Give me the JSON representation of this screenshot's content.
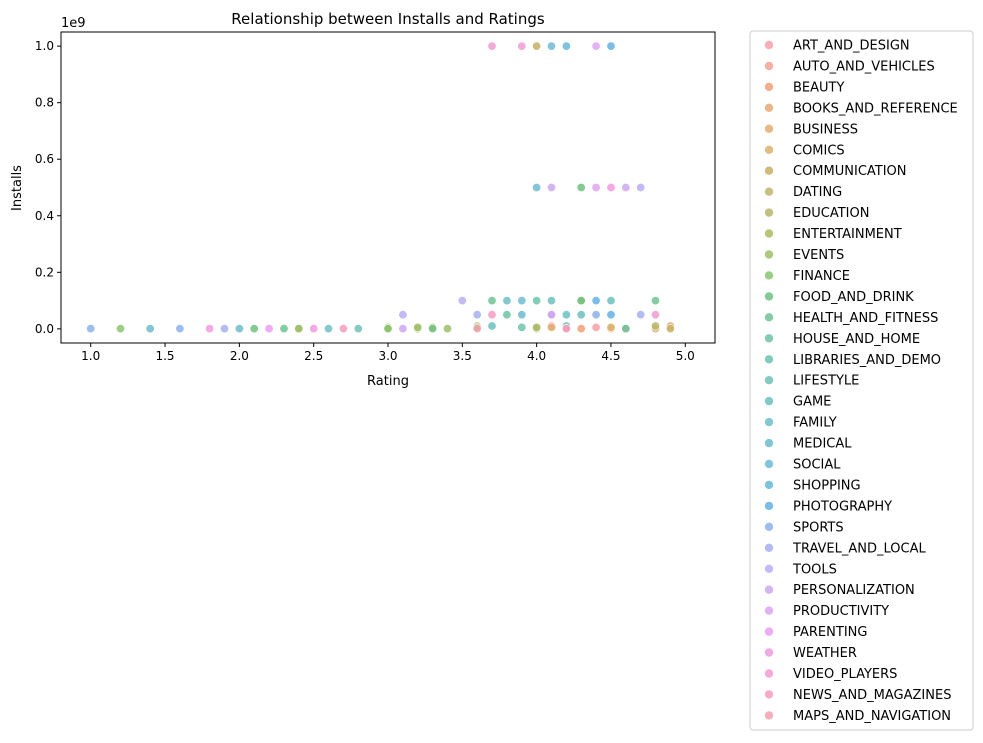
{
  "chart_data": {
    "type": "scatter",
    "title": "Relationship between Installs and Ratings",
    "xlabel": "Rating",
    "ylabel": "Installs",
    "y_offset_text": "1e9",
    "xlim": [
      0.8,
      5.2
    ],
    "ylim": [
      -0.05,
      1.05
    ],
    "x_ticks": [
      1.0,
      1.5,
      2.0,
      2.5,
      3.0,
      3.5,
      4.0,
      4.5,
      5.0
    ],
    "x_tick_labels": [
      "1.0",
      "1.5",
      "2.0",
      "2.5",
      "3.0",
      "3.5",
      "4.0",
      "4.5",
      "5.0"
    ],
    "y_ticks": [
      0.0,
      0.2,
      0.4,
      0.6,
      0.8,
      1.0
    ],
    "y_tick_labels": [
      "0.0",
      "0.2",
      "0.4",
      "0.6",
      "0.8",
      "1.0"
    ],
    "grid": false,
    "legend_position": "outside-right",
    "series": [
      {
        "name": "ART_AND_DESIGN",
        "color": "#f7a0a8",
        "points": [
          [
            4.1,
            0.01
          ],
          [
            4.4,
            0.005
          ]
        ]
      },
      {
        "name": "AUTO_AND_VEHICLES",
        "color": "#f4a194",
        "points": [
          [
            4.6,
            0.001
          ]
        ]
      },
      {
        "name": "BEAUTY",
        "color": "#f2a079",
        "points": [
          [
            4.3,
            0.001
          ]
        ]
      },
      {
        "name": "BOOKS_AND_REFERENCE",
        "color": "#e9a873",
        "points": [
          [
            4.5,
            0.001
          ],
          [
            4.6,
            0.001
          ]
        ]
      },
      {
        "name": "BUSINESS",
        "color": "#e3ad72",
        "points": [
          [
            4.1,
            0.005
          ],
          [
            4.8,
            0.001
          ],
          [
            4.9,
            0.01
          ]
        ]
      },
      {
        "name": "COMICS",
        "color": "#d9b36f",
        "points": [
          [
            4.5,
            0.005
          ]
        ]
      },
      {
        "name": "COMMUNICATION",
        "color": "#c7b065",
        "points": [
          [
            4.0,
            1.0
          ],
          [
            4.3,
            0.1
          ],
          [
            4.9,
            0.001
          ]
        ]
      },
      {
        "name": "DATING",
        "color": "#bdb56c",
        "points": [
          [
            3.3,
            0.005
          ],
          [
            3.6,
            0.01
          ],
          [
            4.0,
            0.001
          ]
        ]
      },
      {
        "name": "EDUCATION",
        "color": "#b6b769",
        "points": [
          [
            3.0,
            0.005
          ],
          [
            3.2,
            0.001
          ],
          [
            4.8,
            0.01
          ]
        ]
      },
      {
        "name": "ENTERTAINMENT",
        "color": "#adbb64",
        "points": [
          [
            2.4,
            0.001
          ],
          [
            3.0,
            0.001
          ],
          [
            4.0,
            0.005
          ]
        ]
      },
      {
        "name": "EVENTS",
        "color": "#9ebf6a",
        "points": [
          [
            2.4,
            0.001
          ],
          [
            3.2,
            0.005
          ],
          [
            3.4,
            0.001
          ]
        ]
      },
      {
        "name": "FINANCE",
        "color": "#87c56e",
        "points": [
          [
            1.2,
            0.001
          ],
          [
            3.0,
            0.001
          ],
          [
            3.6,
            0.005
          ]
        ]
      },
      {
        "name": "FOOD_AND_DRINK",
        "color": "#6fc280",
        "points": [
          [
            4.3,
            0.5
          ],
          [
            4.3,
            0.1
          ],
          [
            2.1,
            0.001
          ],
          [
            3.3,
            0.001
          ]
        ]
      },
      {
        "name": "HEALTH_AND_FITNESS",
        "color": "#70c293",
        "points": [
          [
            3.7,
            0.1
          ],
          [
            4.8,
            0.1
          ],
          [
            2.3,
            0.001
          ]
        ]
      },
      {
        "name": "HOUSE_AND_HOME",
        "color": "#6cc3a1",
        "points": [
          [
            3.8,
            0.05
          ],
          [
            4.6,
            0.001
          ]
        ]
      },
      {
        "name": "LIBRARIES_AND_DEMO",
        "color": "#6ec3ae",
        "points": [
          [
            4.0,
            0.1
          ],
          [
            3.9,
            0.005
          ]
        ]
      },
      {
        "name": "LIFESTYLE",
        "color": "#70c2b6",
        "points": [
          [
            2.8,
            0.001
          ],
          [
            4.2,
            0.01
          ]
        ]
      },
      {
        "name": "GAME",
        "color": "#6cc1bf",
        "points": [
          [
            3.7,
            0.01
          ],
          [
            4.1,
            0.1
          ],
          [
            4.3,
            0.05
          ],
          [
            4.5,
            0.1
          ]
        ]
      },
      {
        "name": "FAMILY",
        "color": "#6ebfc6",
        "points": [
          [
            3.8,
            0.1
          ],
          [
            4.2,
            0.05
          ],
          [
            2.6,
            0.001
          ]
        ]
      },
      {
        "name": "MEDICAL",
        "color": "#6bbcca",
        "points": [
          [
            3.9,
            0.05
          ],
          [
            1.4,
            0.001
          ],
          [
            2.0,
            0.001
          ]
        ]
      },
      {
        "name": "SOCIAL",
        "color": "#6ebbd4",
        "points": [
          [
            4.1,
            1.0
          ],
          [
            4.0,
            0.5
          ],
          [
            3.9,
            0.1
          ]
        ]
      },
      {
        "name": "SHOPPING",
        "color": "#67b8d8",
        "points": [
          [
            4.2,
            1.0
          ],
          [
            4.1,
            0.05
          ]
        ]
      },
      {
        "name": "PHOTOGRAPHY",
        "color": "#64b1e3",
        "points": [
          [
            4.5,
            1.0
          ],
          [
            4.4,
            0.1
          ],
          [
            4.5,
            0.05
          ]
        ]
      },
      {
        "name": "SPORTS",
        "color": "#8cb2ea",
        "points": [
          [
            4.4,
            0.05
          ],
          [
            1.6,
            0.001
          ],
          [
            1.0,
            0.001
          ]
        ]
      },
      {
        "name": "TRAVEL_AND_LOCAL",
        "color": "#a5b0ef",
        "points": [
          [
            4.7,
            0.05
          ],
          [
            3.6,
            0.05
          ],
          [
            1.9,
            0.001
          ]
        ]
      },
      {
        "name": "TOOLS",
        "color": "#b8aef4",
        "points": [
          [
            4.7,
            0.5
          ],
          [
            3.5,
            0.1
          ],
          [
            3.1,
            0.05
          ]
        ]
      },
      {
        "name": "PERSONALIZATION",
        "color": "#cda8f0",
        "points": [
          [
            4.1,
            0.5
          ],
          [
            4.6,
            0.5
          ],
          [
            3.1,
            0.001
          ]
        ]
      },
      {
        "name": "PRODUCTIVITY",
        "color": "#dea4f4",
        "points": [
          [
            4.4,
            1.0
          ],
          [
            4.4,
            0.5
          ],
          [
            4.1,
            0.05
          ]
        ]
      },
      {
        "name": "PARENTING",
        "color": "#ea9ef1",
        "points": [
          [
            2.2,
            0.001
          ],
          [
            4.2,
            0.001
          ]
        ]
      },
      {
        "name": "WEATHER",
        "color": "#f09adf",
        "points": [
          [
            4.5,
            0.5
          ],
          [
            1.8,
            0.001
          ],
          [
            2.5,
            0.001
          ]
        ]
      },
      {
        "name": "VIDEO_PLAYERS",
        "color": "#f29bd2",
        "points": [
          [
            3.9,
            1.0
          ],
          [
            3.7,
            1.0
          ],
          [
            4.8,
            0.05
          ]
        ]
      },
      {
        "name": "NEWS_AND_MAGAZINES",
        "color": "#f59dc0",
        "points": [
          [
            3.7,
            0.05
          ],
          [
            2.7,
            0.001
          ]
        ]
      },
      {
        "name": "MAPS_AND_NAVIGATION",
        "color": "#f5a0b2",
        "points": [
          [
            3.6,
            0.001
          ],
          [
            4.2,
            0.001
          ]
        ]
      }
    ]
  }
}
